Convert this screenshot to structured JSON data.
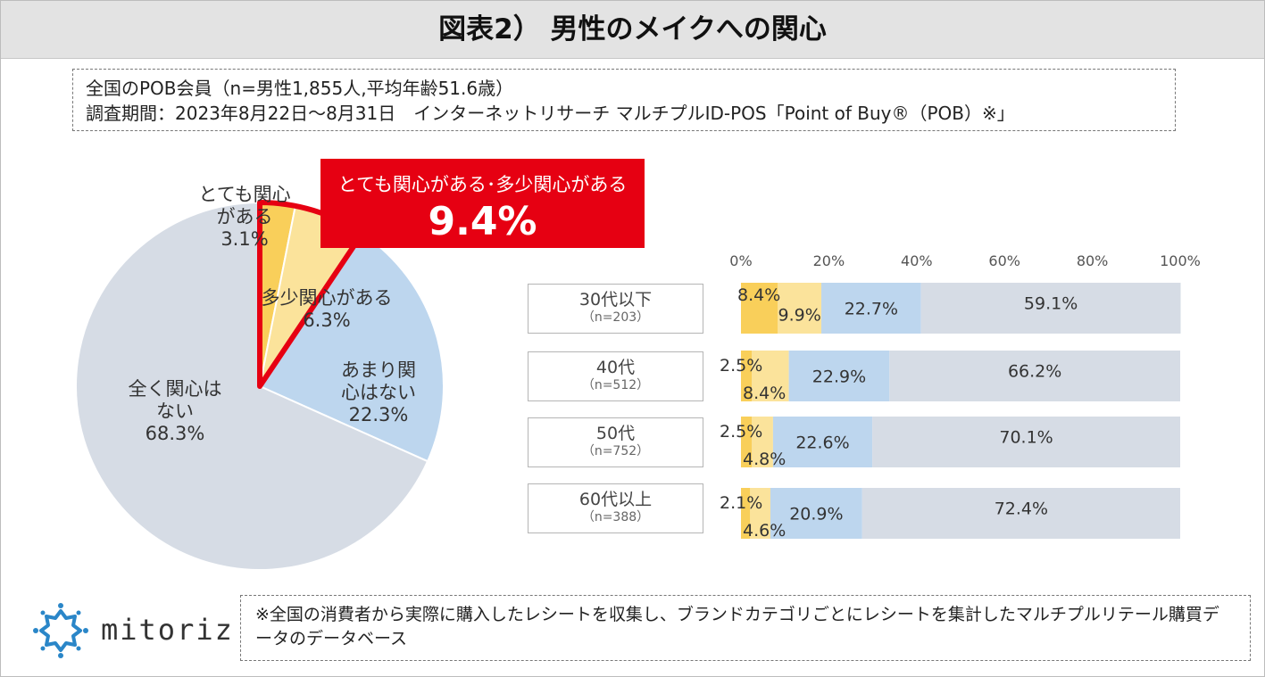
{
  "header": {
    "title": "図表2） 男性のメイクへの関心"
  },
  "info": {
    "line1": "全国のPOB会員（n=男性1,855人,平均年齢51.6歳）",
    "line2": "調査期間：2023年8月22日～8月31日　インターネットリサーチ マルチプルID-POS「Point of Buy®（POB）※」"
  },
  "callout": {
    "label": "とても関心がある･多少関心がある",
    "value": "9.4%"
  },
  "colors": {
    "very": "#f9cf5a",
    "some": "#fbe39b",
    "little": "#bdd6ee",
    "none": "#d6dce5",
    "accent": "#e60012"
  },
  "pie_labels": {
    "very": {
      "name_l1": "とても関心",
      "name_l2": "がある",
      "pct": "3.1%"
    },
    "some": {
      "name": "多少関心がある",
      "pct": "6.3%"
    },
    "little": {
      "name_l1": "あまり関",
      "name_l2": "心はない",
      "pct": "22.3%"
    },
    "none": {
      "name_l1": "全く関心は",
      "name_l2": "ない",
      "pct": "68.3%"
    }
  },
  "chart_data": [
    {
      "type": "pie",
      "categories": [
        "とても関心がある",
        "多少関心がある",
        "あまり関心はない",
        "全く関心はない"
      ],
      "values": [
        3.1,
        6.3,
        22.3,
        68.3
      ],
      "unit": "%"
    },
    {
      "type": "bar",
      "orientation": "horizontal",
      "stacked": true,
      "categories": [
        "30代以下",
        "40代",
        "50代",
        "60代以上"
      ],
      "category_n": [
        "（n=203）",
        "（n=512）",
        "（n=752）",
        "（n=388）"
      ],
      "series": [
        {
          "values": [
            8.4,
            2.5,
            2.5,
            2.1
          ],
          "labels": [
            "8.4%",
            "2.5%",
            "2.5%",
            "2.1%"
          ]
        },
        {
          "values": [
            9.9,
            8.4,
            4.8,
            4.6
          ],
          "labels": [
            "9.9%",
            "8.4%",
            "4.8%",
            "4.6%"
          ]
        },
        {
          "values": [
            22.7,
            22.9,
            22.6,
            20.9
          ],
          "labels": [
            "22.7%",
            "22.9%",
            "22.6%",
            "20.9%"
          ]
        },
        {
          "values": [
            59.1,
            66.2,
            70.1,
            72.4
          ],
          "labels": [
            "59.1%",
            "66.2%",
            "70.1%",
            "72.4%"
          ]
        }
      ],
      "xticks": [
        "0%",
        "20%",
        "40%",
        "60%",
        "80%",
        "100%"
      ],
      "xlim": [
        0,
        100
      ],
      "grid": false
    }
  ],
  "footnote": "※全国の消費者から実際に購入したレシートを収集し、ブランドカテゴリごとにレシートを集計したマルチプルリテール購買データのデータベース",
  "logo": {
    "name": "mitoriz"
  }
}
